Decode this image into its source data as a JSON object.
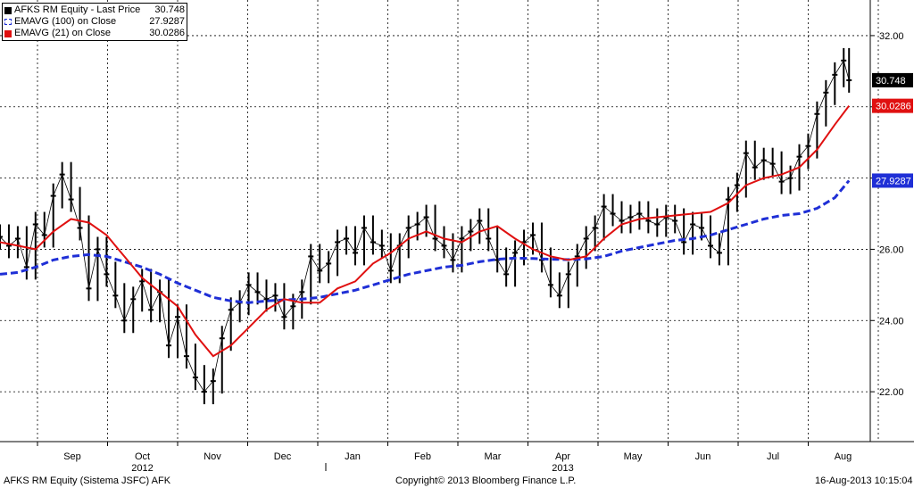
{
  "legend": [
    {
      "label": "AFKS RM Equity - Last Price",
      "value": "30.748",
      "color": "#000000"
    },
    {
      "label": "EMAVG (100) on Close",
      "value": "27.9287",
      "color": "#1f2fd6"
    },
    {
      "label": "EMAVG (21) on Close",
      "value": "30.0286",
      "color": "#e01010"
    }
  ],
  "price_tags": [
    {
      "value": "30.748",
      "y": 30.748,
      "bg": "#000000",
      "fg": "#ffffff"
    },
    {
      "value": "30.0286",
      "y": 30.0286,
      "bg": "#e01010",
      "fg": "#ffffff"
    },
    {
      "value": "27.9287",
      "y": 27.9287,
      "bg": "#1f2fd6",
      "fg": "#ffffff"
    }
  ],
  "footer": {
    "left": "AFKS RM Equity (Sistema JSFC) AFK",
    "center": "Copyright© 2013 Bloomberg Finance L.P.",
    "right": "16-Aug-2013 10:15:04"
  },
  "chart_data": {
    "type": "line",
    "x_months": [
      "Sep",
      "Oct",
      "Nov",
      "Dec",
      "Jan",
      "Feb",
      "Mar",
      "Apr",
      "May",
      "Jun",
      "Jul",
      "Aug"
    ],
    "x_years": [
      {
        "label": "2012",
        "month_index": 1
      },
      {
        "label": "2013",
        "month_index": 7
      }
    ],
    "y_ticks": [
      "22.00",
      "24.00",
      "26.00",
      "28.00",
      "30.00",
      "32.00"
    ],
    "ylim": [
      20.6,
      33.0
    ],
    "grid": true,
    "axis_side": "right",
    "series": [
      {
        "name": "AFKS RM Equity - Last Price",
        "style": "bars",
        "color": "#000000",
        "points": [
          [
            0.0,
            26.35
          ],
          [
            0.25,
            26.1
          ],
          [
            0.5,
            26.3
          ],
          [
            0.75,
            25.5
          ],
          [
            1.0,
            26.7
          ],
          [
            1.25,
            26.4
          ],
          [
            1.5,
            27.5
          ],
          [
            1.75,
            28.1
          ],
          [
            2.0,
            27.4
          ],
          [
            2.25,
            26.6
          ],
          [
            2.5,
            24.9
          ],
          [
            2.75,
            26.0
          ],
          [
            3.0,
            25.3
          ],
          [
            3.25,
            24.7
          ],
          [
            3.5,
            24.0
          ],
          [
            3.75,
            24.6
          ],
          [
            4.0,
            25.1
          ],
          [
            4.25,
            24.3
          ],
          [
            4.5,
            24.8
          ],
          [
            4.75,
            23.3
          ],
          [
            5.0,
            24.1
          ],
          [
            5.25,
            23.0
          ],
          [
            5.5,
            22.4
          ],
          [
            5.75,
            22.0
          ],
          [
            6.0,
            22.3
          ],
          [
            6.25,
            23.5
          ],
          [
            6.5,
            24.3
          ],
          [
            6.75,
            24.5
          ],
          [
            7.0,
            25.0
          ],
          [
            7.25,
            24.8
          ],
          [
            7.5,
            24.6
          ],
          [
            7.75,
            24.7
          ],
          [
            8.0,
            24.1
          ],
          [
            8.25,
            24.4
          ],
          [
            8.5,
            24.8
          ],
          [
            8.75,
            25.8
          ],
          [
            9.0,
            25.4
          ],
          [
            9.25,
            25.6
          ],
          [
            9.5,
            26.2
          ],
          [
            9.75,
            26.3
          ],
          [
            10.0,
            25.9
          ],
          [
            10.25,
            26.6
          ],
          [
            10.5,
            26.2
          ],
          [
            10.75,
            26.1
          ],
          [
            11.0,
            25.4
          ],
          [
            11.25,
            26.1
          ],
          [
            11.5,
            26.6
          ],
          [
            11.75,
            26.7
          ],
          [
            12.0,
            26.9
          ],
          [
            12.25,
            26.3
          ],
          [
            12.5,
            26.1
          ],
          [
            12.75,
            25.7
          ],
          [
            13.0,
            26.3
          ],
          [
            13.25,
            26.5
          ],
          [
            13.5,
            26.8
          ],
          [
            13.75,
            26.3
          ],
          [
            14.0,
            25.7
          ],
          [
            14.25,
            25.3
          ],
          [
            14.5,
            25.9
          ],
          [
            14.75,
            26.2
          ],
          [
            15.0,
            26.4
          ],
          [
            15.25,
            25.7
          ],
          [
            15.5,
            25.0
          ],
          [
            15.75,
            24.7
          ],
          [
            16.0,
            25.3
          ],
          [
            16.25,
            25.8
          ],
          [
            16.5,
            26.3
          ],
          [
            16.75,
            26.6
          ],
          [
            17.0,
            27.2
          ],
          [
            17.25,
            27.0
          ],
          [
            17.5,
            26.8
          ],
          [
            17.75,
            26.9
          ],
          [
            18.0,
            27.0
          ],
          [
            18.25,
            26.8
          ],
          [
            18.5,
            26.7
          ],
          [
            18.75,
            26.9
          ],
          [
            19.0,
            26.8
          ],
          [
            19.25,
            26.2
          ],
          [
            19.5,
            26.7
          ],
          [
            19.75,
            26.6
          ],
          [
            20.0,
            26.1
          ],
          [
            20.25,
            25.9
          ],
          [
            20.5,
            27.4
          ],
          [
            20.75,
            27.8
          ],
          [
            21.0,
            28.7
          ],
          [
            21.25,
            28.3
          ],
          [
            21.5,
            28.5
          ],
          [
            21.75,
            28.4
          ],
          [
            22.0,
            27.9
          ],
          [
            22.25,
            28.0
          ],
          [
            22.5,
            28.6
          ],
          [
            22.75,
            28.9
          ],
          [
            23.0,
            29.8
          ],
          [
            23.25,
            30.4
          ],
          [
            23.5,
            30.9
          ],
          [
            23.75,
            31.3
          ],
          [
            23.9,
            30.748
          ]
        ]
      },
      {
        "name": "EMAVG (100) on Close",
        "style": "dashed",
        "color": "#1f2fd6",
        "points": [
          [
            0.0,
            25.3
          ],
          [
            0.5,
            25.35
          ],
          [
            1.0,
            25.5
          ],
          [
            1.5,
            25.7
          ],
          [
            2.0,
            25.8
          ],
          [
            2.5,
            25.85
          ],
          [
            3.0,
            25.8
          ],
          [
            3.5,
            25.65
          ],
          [
            4.0,
            25.5
          ],
          [
            4.5,
            25.3
          ],
          [
            5.0,
            25.05
          ],
          [
            5.5,
            24.85
          ],
          [
            6.0,
            24.65
          ],
          [
            6.5,
            24.55
          ],
          [
            7.0,
            24.5
          ],
          [
            7.5,
            24.55
          ],
          [
            8.0,
            24.58
          ],
          [
            8.5,
            24.6
          ],
          [
            9.0,
            24.65
          ],
          [
            9.5,
            24.75
          ],
          [
            10.0,
            24.85
          ],
          [
            10.5,
            25.0
          ],
          [
            11.0,
            25.15
          ],
          [
            11.5,
            25.3
          ],
          [
            12.0,
            25.4
          ],
          [
            12.5,
            25.5
          ],
          [
            13.0,
            25.55
          ],
          [
            13.5,
            25.65
          ],
          [
            14.0,
            25.72
          ],
          [
            14.5,
            25.75
          ],
          [
            15.0,
            25.74
          ],
          [
            15.5,
            25.72
          ],
          [
            16.0,
            25.71
          ],
          [
            16.5,
            25.73
          ],
          [
            17.0,
            25.8
          ],
          [
            17.5,
            25.95
          ],
          [
            18.0,
            26.05
          ],
          [
            18.5,
            26.15
          ],
          [
            19.0,
            26.25
          ],
          [
            19.5,
            26.3
          ],
          [
            20.0,
            26.4
          ],
          [
            20.5,
            26.55
          ],
          [
            21.0,
            26.7
          ],
          [
            21.5,
            26.85
          ],
          [
            22.0,
            26.95
          ],
          [
            22.5,
            27.0
          ],
          [
            23.0,
            27.15
          ],
          [
            23.5,
            27.45
          ],
          [
            23.9,
            27.9287
          ]
        ]
      },
      {
        "name": "EMAVG (21) on Close",
        "style": "solid",
        "color": "#e01010",
        "points": [
          [
            0.0,
            26.2
          ],
          [
            0.5,
            26.1
          ],
          [
            1.0,
            26.0
          ],
          [
            1.5,
            26.5
          ],
          [
            2.0,
            26.85
          ],
          [
            2.5,
            26.75
          ],
          [
            3.0,
            26.4
          ],
          [
            3.5,
            25.8
          ],
          [
            4.0,
            25.2
          ],
          [
            4.5,
            24.8
          ],
          [
            5.0,
            24.4
          ],
          [
            5.5,
            23.6
          ],
          [
            6.0,
            23.0
          ],
          [
            6.5,
            23.3
          ],
          [
            7.0,
            23.8
          ],
          [
            7.5,
            24.3
          ],
          [
            8.0,
            24.6
          ],
          [
            8.5,
            24.5
          ],
          [
            9.0,
            24.5
          ],
          [
            9.5,
            24.9
          ],
          [
            10.0,
            25.1
          ],
          [
            10.5,
            25.6
          ],
          [
            11.0,
            25.9
          ],
          [
            11.5,
            26.3
          ],
          [
            12.0,
            26.5
          ],
          [
            12.5,
            26.3
          ],
          [
            13.0,
            26.2
          ],
          [
            13.5,
            26.5
          ],
          [
            14.0,
            26.65
          ],
          [
            14.5,
            26.3
          ],
          [
            15.0,
            26.0
          ],
          [
            15.5,
            25.8
          ],
          [
            16.0,
            25.7
          ],
          [
            16.5,
            25.8
          ],
          [
            17.0,
            26.3
          ],
          [
            17.5,
            26.7
          ],
          [
            18.0,
            26.85
          ],
          [
            18.5,
            26.9
          ],
          [
            19.0,
            26.95
          ],
          [
            19.5,
            27.0
          ],
          [
            20.0,
            27.05
          ],
          [
            20.5,
            27.3
          ],
          [
            21.0,
            27.8
          ],
          [
            21.5,
            28.0
          ],
          [
            22.0,
            28.1
          ],
          [
            22.5,
            28.3
          ],
          [
            23.0,
            28.8
          ],
          [
            23.5,
            29.5
          ],
          [
            23.9,
            30.0286
          ]
        ]
      }
    ]
  }
}
